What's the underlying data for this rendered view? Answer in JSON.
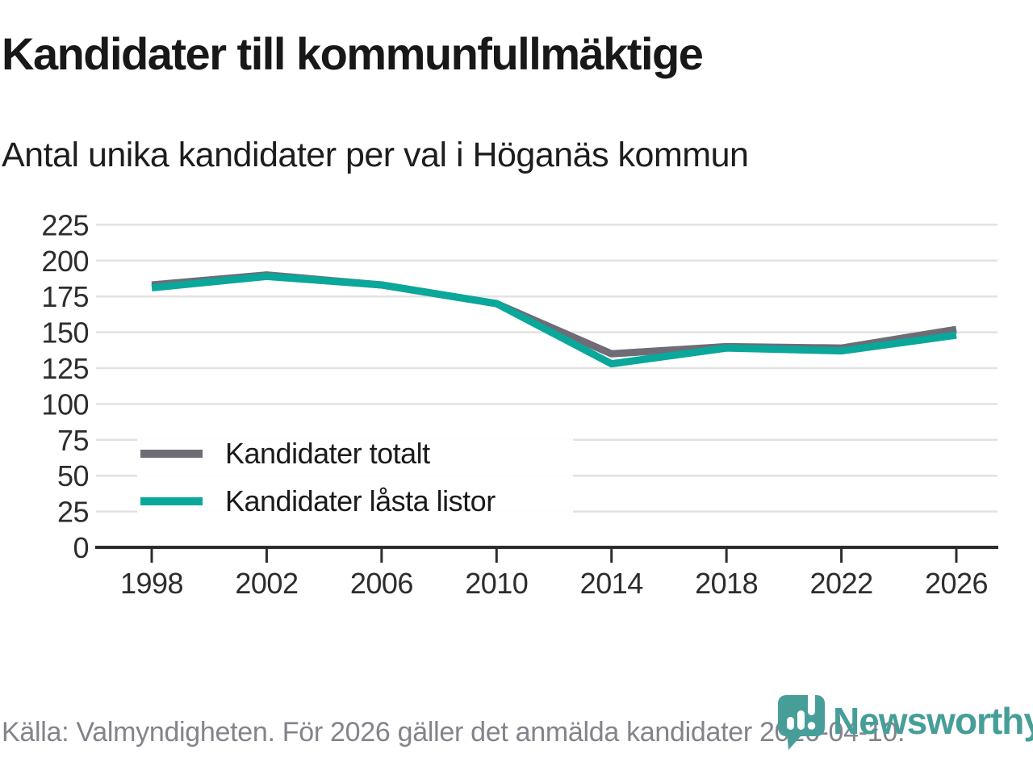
{
  "header": {
    "title": "Kandidater till kommunfullmäktige",
    "subtitle": "Antal unika kandidater per val i Höganäs kommun"
  },
  "chart_data": {
    "type": "line",
    "x": [
      1998,
      2002,
      2006,
      2010,
      2014,
      2018,
      2022,
      2026
    ],
    "series": [
      {
        "name": "Kandidater totalt",
        "color": "#6f6c75",
        "values": [
          183,
          190,
          183,
          170,
          135,
          140,
          139,
          152
        ]
      },
      {
        "name": "Kandidater låsta listor",
        "color": "#0aa79b",
        "values": [
          181,
          189,
          183,
          170,
          128,
          139,
          137,
          148
        ]
      }
    ],
    "title": "Kandidater till kommunfullmäktige",
    "subtitle": "Antal unika kandidater per val i Höganäs kommun",
    "xlabel": "",
    "ylabel": "",
    "ylim": [
      0,
      225
    ],
    "yticks": [
      0,
      25,
      50,
      75,
      100,
      125,
      150,
      175,
      200,
      225
    ],
    "xtick_labels": [
      "1998",
      "2002",
      "2006",
      "2010",
      "2014",
      "2018",
      "2022",
      "2026"
    ],
    "grid": "horizontal",
    "legend_position": "inside-left-bottom"
  },
  "footer": {
    "source": "Källa: Valmyndigheten. För 2026 gäller det anmälda kandidater 2026-04-10."
  },
  "logo": {
    "text": "Newsworthy",
    "color": "#479e99",
    "icon": "newsworthy-speech-bubble-barchart"
  },
  "colors": {
    "series_total": "#6f6c75",
    "series_locked": "#0aa79b",
    "gridline": "#e2e2e2",
    "axis": "#2d2d2d",
    "axis_text": "#2d2d2d",
    "title_text": "#181818",
    "footer_text": "#83838b",
    "logo_teal": "#479e99"
  }
}
